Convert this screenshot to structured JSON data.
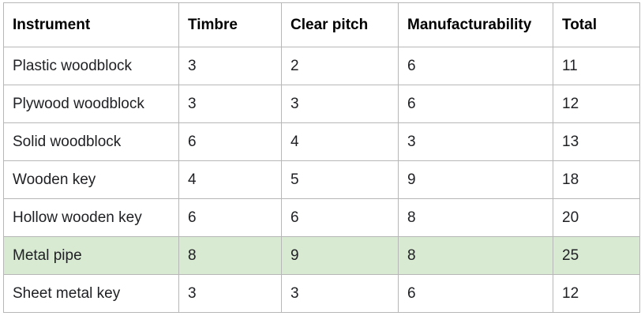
{
  "table": {
    "headers": [
      "Instrument",
      "Timbre",
      "Clear pitch",
      "Manufacturability",
      "Total"
    ],
    "rows": [
      {
        "cells": [
          "Plastic woodblock",
          "3",
          "2",
          "6",
          "11"
        ],
        "highlighted": false
      },
      {
        "cells": [
          "Plywood woodblock",
          "3",
          "3",
          "6",
          "12"
        ],
        "highlighted": false
      },
      {
        "cells": [
          "Solid woodblock",
          "6",
          "4",
          "3",
          "13"
        ],
        "highlighted": false
      },
      {
        "cells": [
          "Wooden key",
          "4",
          "5",
          "9",
          "18"
        ],
        "highlighted": false
      },
      {
        "cells": [
          "Hollow wooden key",
          "6",
          "6",
          "8",
          "20"
        ],
        "highlighted": false
      },
      {
        "cells": [
          "Metal pipe",
          "8",
          "9",
          "8",
          "25"
        ],
        "highlighted": true
      },
      {
        "cells": [
          "Sheet metal key",
          "3",
          "3",
          "6",
          "12"
        ],
        "highlighted": false
      }
    ]
  },
  "colors": {
    "highlight": "#d9ead3",
    "border": "#b7b7b7"
  }
}
